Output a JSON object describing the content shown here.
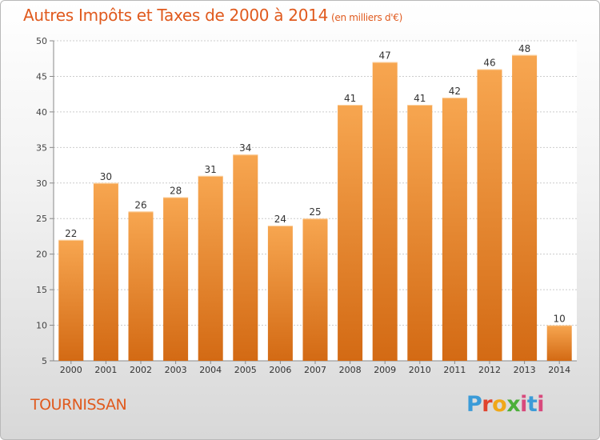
{
  "header": {
    "title": "Autres Impôts et Taxes de 2000 à 2014",
    "unit": "(en milliers d'€)"
  },
  "footer": {
    "commune": "TOURNISSAN",
    "logo_text": "Proxiti"
  },
  "colors": {
    "title": "#e05a1e",
    "bar_top": "#f7a650",
    "bar_bottom": "#d36a14",
    "grid": "#cccccc",
    "axis": "#888888"
  },
  "chart_data": {
    "type": "bar",
    "title": "Autres Impôts et Taxes de 2000 à 2014",
    "subtitle": "(en milliers d'€)",
    "xlabel": "",
    "ylabel": "",
    "categories": [
      "2000",
      "2001",
      "2002",
      "2003",
      "2004",
      "2005",
      "2006",
      "2007",
      "2008",
      "2009",
      "2010",
      "2011",
      "2012",
      "2013",
      "2014"
    ],
    "values": [
      22,
      30,
      26,
      28,
      31,
      34,
      24,
      25,
      41,
      47,
      41,
      42,
      46,
      48,
      10
    ],
    "ylim": [
      5,
      50
    ],
    "yticks": [
      5,
      10,
      15,
      20,
      25,
      30,
      35,
      40,
      45,
      50
    ],
    "grid": true,
    "data_labels": true
  }
}
